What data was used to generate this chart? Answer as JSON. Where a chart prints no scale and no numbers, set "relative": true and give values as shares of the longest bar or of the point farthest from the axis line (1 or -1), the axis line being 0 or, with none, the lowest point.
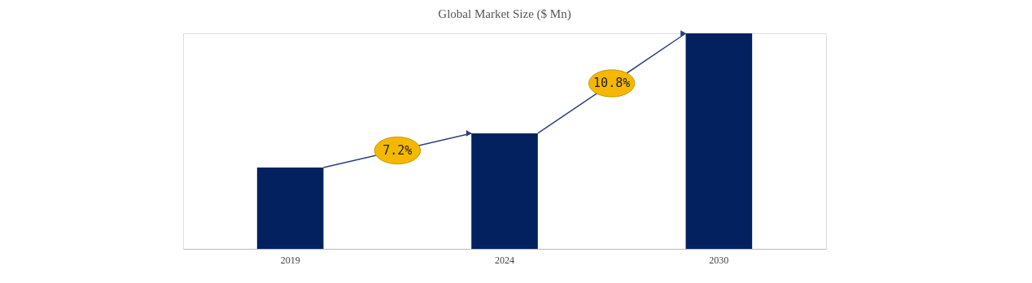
{
  "chart_data": {
    "type": "bar",
    "title": "Global Market Size ($ Mn)",
    "categories": [
      "2019",
      "2024",
      "2030"
    ],
    "values": [
      0.377,
      0.536,
      1
    ],
    "color": "#03215f",
    "relative": true,
    "annotations": [
      "7.2%",
      "10.8%"
    ]
  }
}
